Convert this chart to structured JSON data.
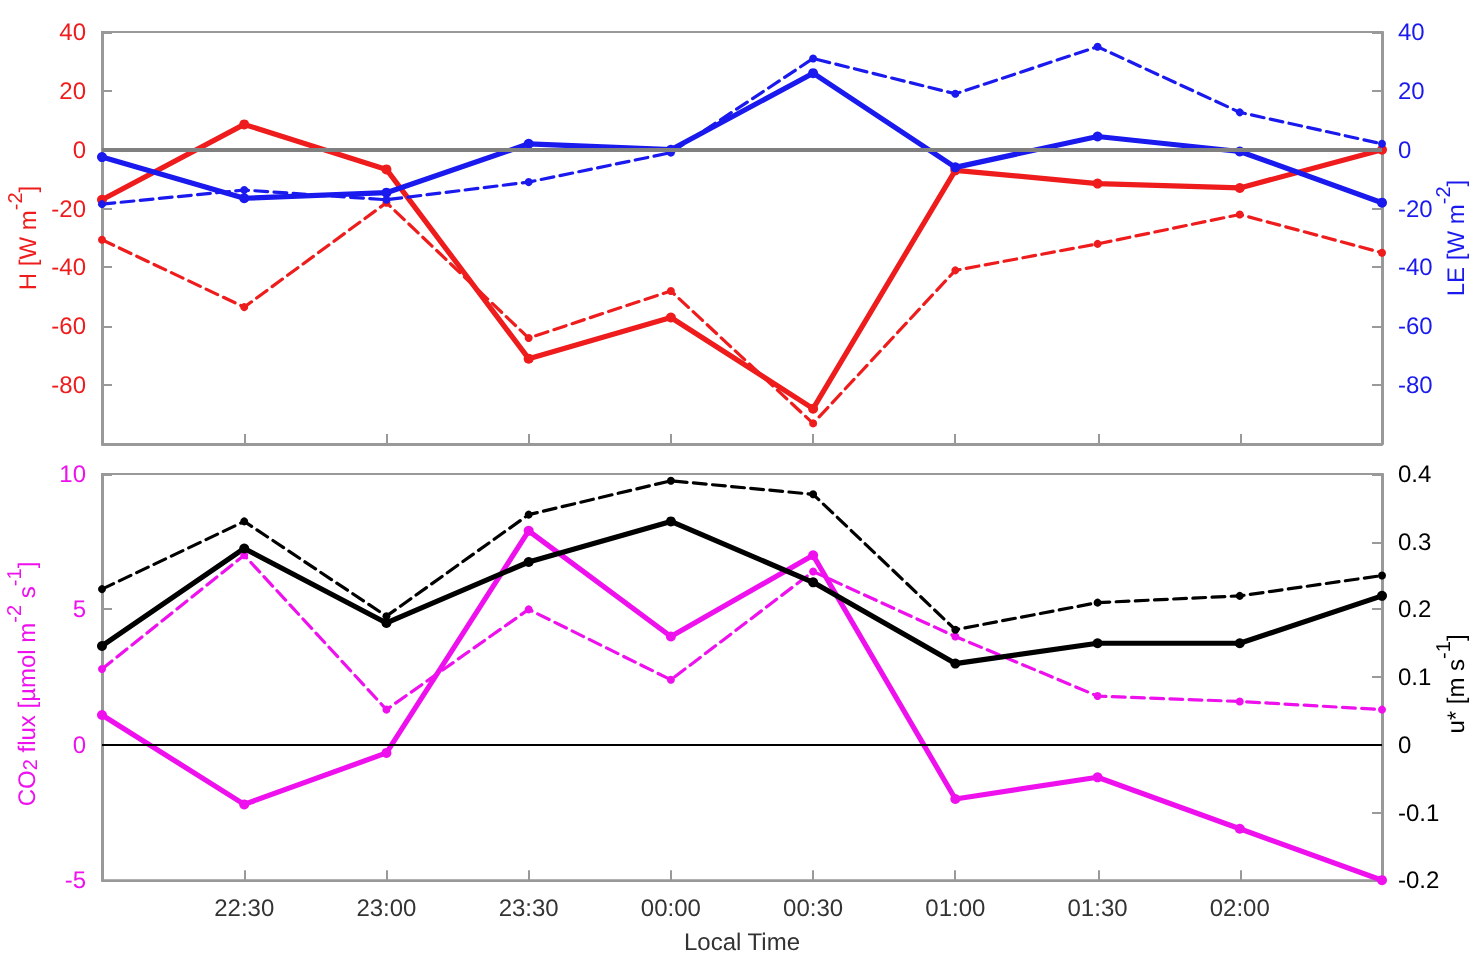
{
  "chart_data": [
    {
      "type": "line",
      "categories": [
        null,
        null,
        null,
        null,
        null,
        null,
        null,
        null,
        null,
        null
      ],
      "ylabel": "H [W m$^{-2}$]",
      "y2label": "LE [W m$^{-2}$]",
      "ylim": [
        -100,
        40
      ],
      "yticks": [
        -80,
        -60,
        -40,
        -20,
        0,
        20,
        40
      ],
      "y2lim": [
        -100,
        40
      ],
      "y2ticks": [
        -80,
        -60,
        -40,
        -20,
        0,
        20,
        40
      ],
      "tick_labels": "y",
      "marker": "circle",
      "series": [
        {
          "color": "#ee1c1c",
          "axis": "y",
          "line_style": "solid",
          "values": [
            -17,
            8.6,
            -6.7,
            -71,
            -57,
            -88,
            -7,
            -11.5,
            -13,
            0
          ]
        },
        {
          "color": "#ee1c1c",
          "axis": "y",
          "line_style": "dashed",
          "values": [
            -30.6,
            -53.5,
            -18,
            -64,
            -48,
            -93,
            -41,
            -32,
            -22,
            -35
          ]
        },
        {
          "color": "#1a1aee",
          "axis": "y2",
          "line_style": "solid",
          "values": [
            -2.5,
            -16.5,
            -14.6,
            2,
            0,
            26,
            -6,
            4.5,
            -0.6,
            -18
          ]
        },
        {
          "color": "#1a1aee",
          "axis": "y2",
          "line_style": "dashed",
          "values": [
            -18.5,
            -13.7,
            -17,
            -11,
            -1,
            31,
            19,
            35,
            12.7,
            2
          ]
        }
      ],
      "ref_lines": [
        {
          "axis": "y",
          "value": 0,
          "color": "#808080"
        }
      ]
    },
    {
      "type": "line",
      "categories": [
        null,
        "22:30",
        "23:00",
        "23:30",
        "00:00",
        "00:30",
        "01:00",
        "01:30",
        "02:00",
        null
      ],
      "xlabel": "Local Time",
      "ylabel": "CO$_{2}$ flux [µmol m$^{-2}$ s$^{-1}$]",
      "y2label": "u* [m s$^{-1}$]",
      "ylim": [
        -5,
        10
      ],
      "yticks": [
        -5,
        0,
        5,
        10
      ],
      "y2lim": [
        -0.2,
        0.4
      ],
      "y2ticks": [
        -0.2,
        -0.1,
        0,
        0.1,
        0.2,
        0.3,
        0.4
      ],
      "marker": "circle",
      "series": [
        {
          "color": "#ee11ee",
          "axis": "y",
          "line_style": "solid",
          "values": [
            1.1,
            -2.2,
            -0.3,
            7.9,
            4.0,
            7.0,
            -2.0,
            -1.2,
            -3.1,
            -5
          ]
        },
        {
          "color": "#ee11ee",
          "axis": "y",
          "line_style": "dashed",
          "values": [
            2.8,
            7.0,
            1.3,
            5.0,
            2.4,
            6.4,
            4.0,
            1.8,
            1.6,
            1.3
          ]
        },
        {
          "color": "#000000",
          "axis": "y2",
          "line_style": "solid",
          "values": [
            0.146,
            0.29,
            0.18,
            0.27,
            0.33,
            0.24,
            0.12,
            0.15,
            0.15,
            0.22
          ]
        },
        {
          "color": "#000000",
          "axis": "y2",
          "line_style": "dashed",
          "values": [
            0.23,
            0.33,
            0.19,
            0.34,
            0.39,
            0.37,
            0.17,
            0.21,
            0.22,
            0.25
          ]
        }
      ],
      "ref_lines": [
        {
          "axis": "y",
          "value": 0,
          "color": "#000000"
        }
      ]
    }
  ]
}
